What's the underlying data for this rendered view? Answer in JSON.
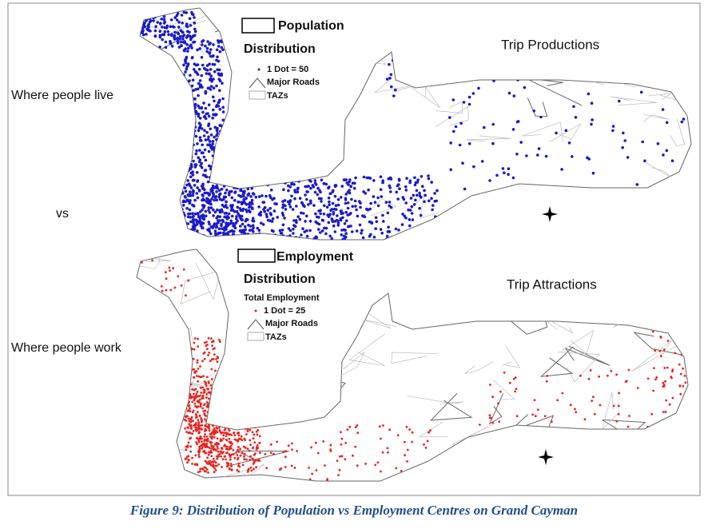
{
  "panels": [
    {
      "legend_title": "Population",
      "legend_subtitle": "Distribution",
      "legend_items": [
        "1 Dot = 50",
        "Major Roads",
        "TAZs"
      ],
      "map_title": "Trip Productions",
      "side_label": "Where people live",
      "dot_color": "#1a1acc"
    },
    {
      "legend_title": "Employment",
      "legend_subtitle": "Distribution",
      "legend_note": "Total Employment",
      "legend_items": [
        "1 Dot = 25",
        "Major Roads",
        "TAZs"
      ],
      "map_title": "Trip Attractions",
      "side_label": "Where people work",
      "dot_color": "#e8231e"
    }
  ],
  "separator": "vs",
  "caption": "Figure 9: Distribution of Population vs Employment Centres on Grand Cayman"
}
